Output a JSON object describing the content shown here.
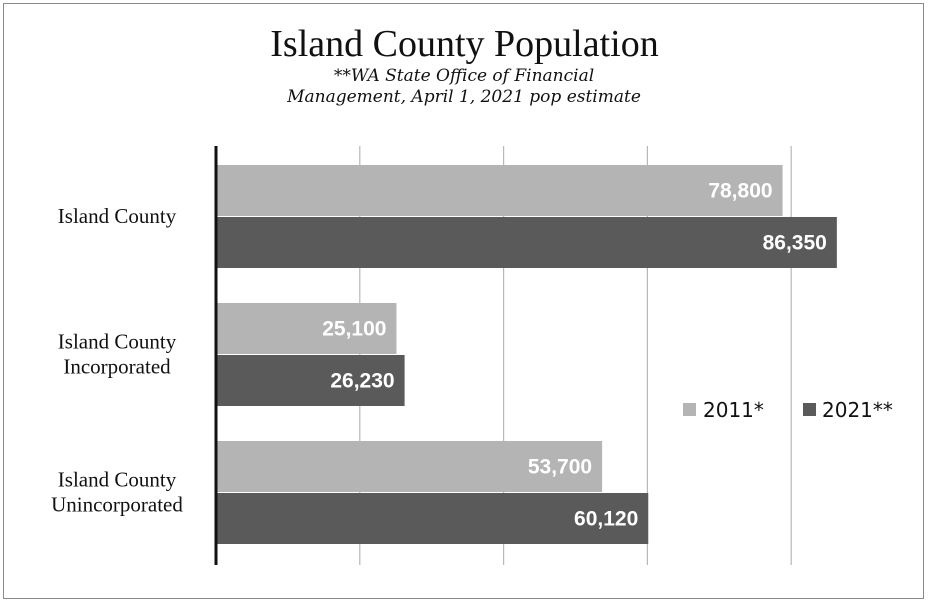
{
  "chart_data": {
    "type": "bar",
    "orientation": "horizontal",
    "title": "Island County Population",
    "subtitle": "**WA State Office of Financial Management, April 1, 2021 pop estimate",
    "categories": [
      "Island County",
      "Island County Incorporated",
      "Island County Unincorporated"
    ],
    "series": [
      {
        "name": "2011*",
        "values": [
          78800,
          25100,
          53700
        ],
        "color": "#b4b4b4"
      },
      {
        "name": "2021**",
        "values": [
          86350,
          26230,
          60120
        ],
        "color": "#5a5a5a"
      }
    ],
    "data_labels": [
      [
        "78,800",
        "25,100",
        "53,700"
      ],
      [
        "86,350",
        "26,230",
        "60,120"
      ]
    ],
    "xlim": [
      0,
      100000
    ],
    "grid": true,
    "legend": "right",
    "xlabel": "",
    "ylabel": ""
  }
}
